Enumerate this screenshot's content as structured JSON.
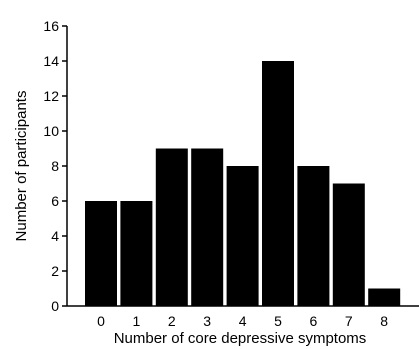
{
  "chart_data": {
    "type": "bar",
    "categories": [
      "0",
      "1",
      "2",
      "3",
      "4",
      "5",
      "6",
      "7",
      "8"
    ],
    "values": [
      6,
      6,
      9,
      9,
      8,
      14,
      8,
      7,
      1
    ],
    "xlabel": "Number of core depressive symptoms",
    "ylabel": "Number of participants",
    "ylim": [
      0,
      16
    ],
    "yticks": [
      "0",
      "2",
      "4",
      "6",
      "8",
      "10",
      "12",
      "14",
      "16"
    ],
    "grid": false,
    "bar_color": "#000000"
  }
}
